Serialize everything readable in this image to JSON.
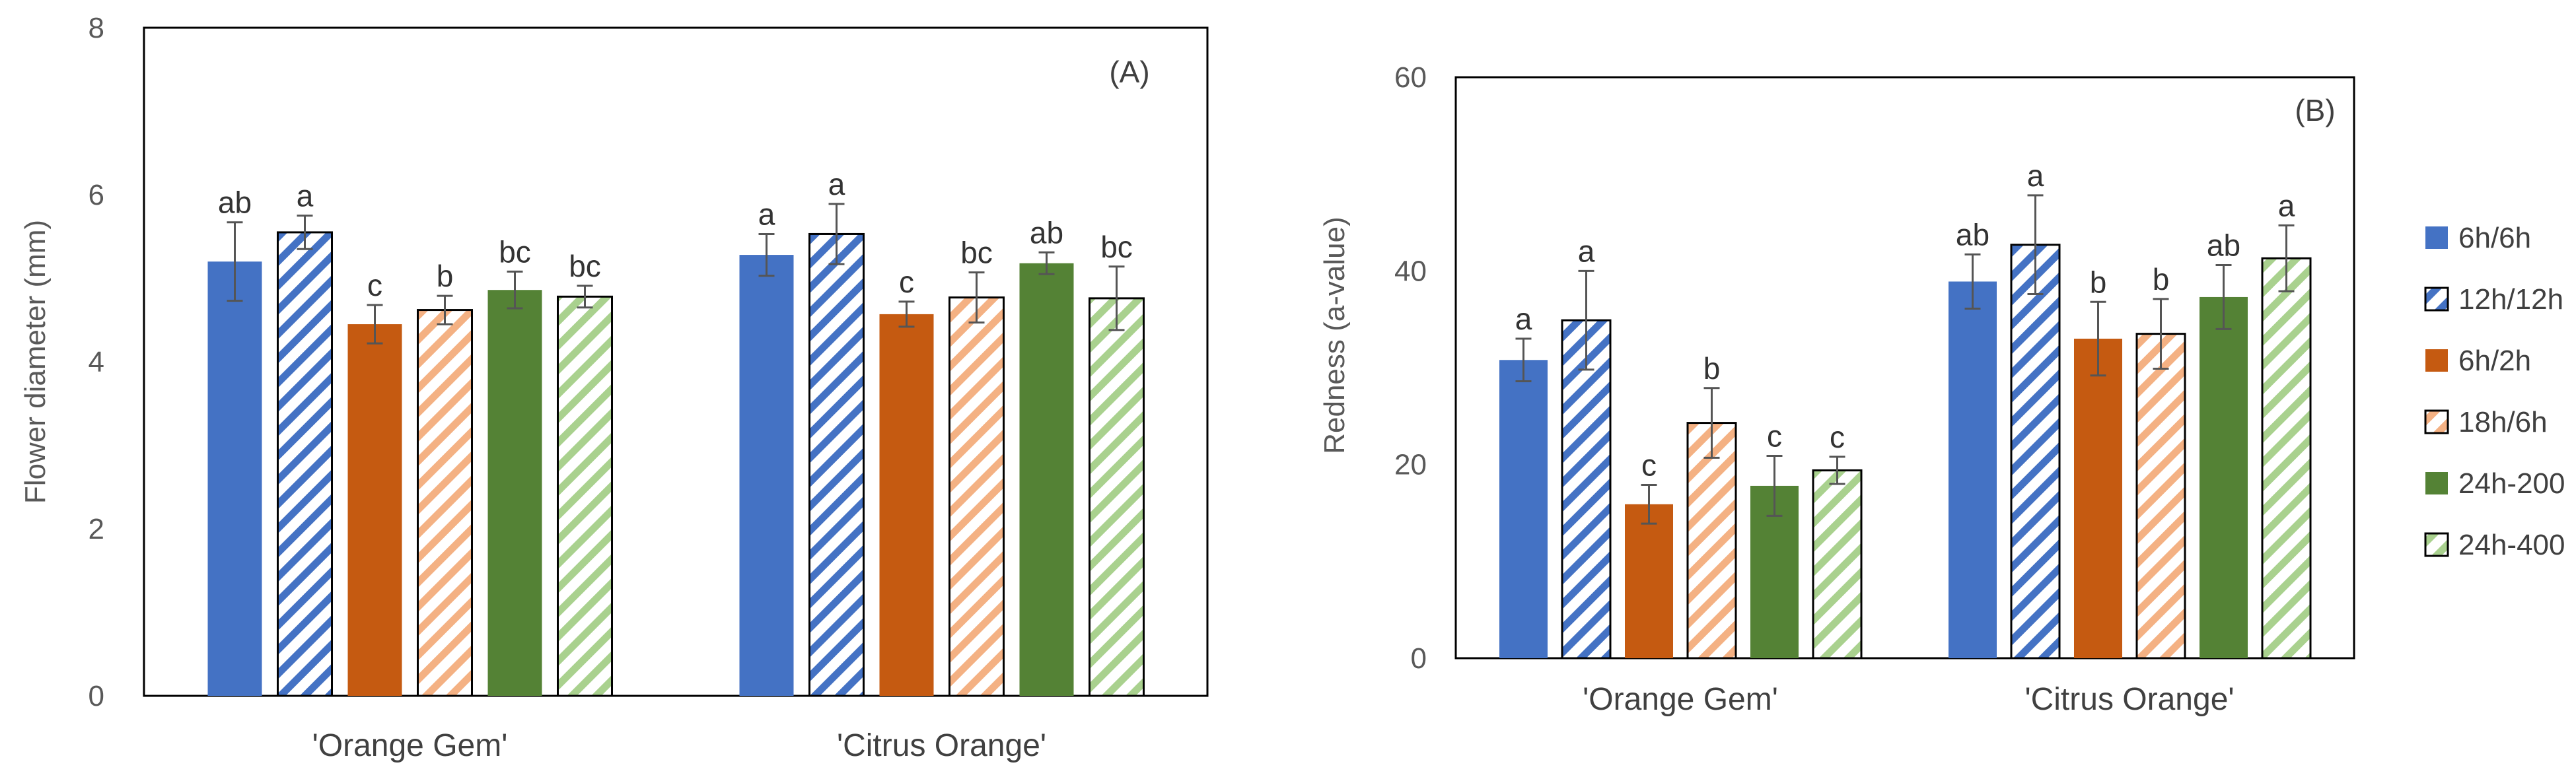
{
  "chart_data": [
    {
      "type": "bar",
      "panel_label": "(A)",
      "title": "",
      "xlabel": "",
      "ylabel": "Flower diameter (mm)",
      "ylim": [
        0,
        8
      ],
      "yticks": [
        "0",
        "2",
        "4",
        "6",
        "8"
      ],
      "grid": false,
      "categories": [
        "'Orange Gem'",
        "'Citrus Orange'"
      ],
      "series": [
        {
          "name": "6h/6h",
          "color": "#4472C4",
          "pattern": "solid",
          "values": [
            5.2,
            5.28
          ],
          "errors": [
            0.47,
            0.25
          ],
          "letters": [
            "ab",
            "a"
          ]
        },
        {
          "name": "12h/12h",
          "color": "#4472C4",
          "pattern": "stripe",
          "values": [
            5.55,
            5.53
          ],
          "errors": [
            0.2,
            0.36
          ],
          "letters": [
            "a",
            "a"
          ]
        },
        {
          "name": "6h/2h",
          "color": "#C55A11",
          "pattern": "solid",
          "values": [
            4.45,
            4.57
          ],
          "errors": [
            0.23,
            0.15
          ],
          "letters": [
            "c",
            "c"
          ]
        },
        {
          "name": "18h/6h",
          "color": "#F4B183",
          "pattern": "stripe",
          "values": [
            4.62,
            4.77
          ],
          "errors": [
            0.17,
            0.3
          ],
          "letters": [
            "b",
            "bc"
          ]
        },
        {
          "name": "24h-200",
          "color": "#548235",
          "pattern": "solid",
          "values": [
            4.86,
            5.18
          ],
          "errors": [
            0.22,
            0.13
          ],
          "letters": [
            "bc",
            "ab"
          ]
        },
        {
          "name": "24h-400",
          "color": "#A9D18E",
          "pattern": "stripe",
          "values": [
            4.78,
            4.76
          ],
          "errors": [
            0.13,
            0.38
          ],
          "letters": [
            "bc",
            "bc"
          ]
        }
      ]
    },
    {
      "type": "bar",
      "panel_label": "(B)",
      "title": "",
      "xlabel": "",
      "ylabel": "Redness (a-value)",
      "ylim": [
        0,
        60
      ],
      "yticks": [
        "0",
        "20",
        "40",
        "60"
      ],
      "grid": false,
      "legend": "right",
      "categories": [
        "'Orange Gem'",
        "'Citrus Orange'"
      ],
      "series": [
        {
          "name": "6h/6h",
          "color": "#4472C4",
          "pattern": "solid",
          "values": [
            30.8,
            38.9
          ],
          "errors": [
            2.2,
            2.8
          ],
          "letters": [
            "a",
            "ab"
          ]
        },
        {
          "name": "12h/12h",
          "color": "#4472C4",
          "pattern": "stripe",
          "values": [
            34.9,
            42.7
          ],
          "errors": [
            5.1,
            5.1
          ],
          "letters": [
            "a",
            "a"
          ]
        },
        {
          "name": "6h/2h",
          "color": "#C55A11",
          "pattern": "solid",
          "values": [
            15.9,
            33.0
          ],
          "errors": [
            2.0,
            3.8
          ],
          "letters": [
            "c",
            "b"
          ]
        },
        {
          "name": "18h/6h",
          "color": "#F4B183",
          "pattern": "stripe",
          "values": [
            24.3,
            33.5
          ],
          "errors": [
            3.6,
            3.6
          ],
          "letters": [
            "b",
            "b"
          ]
        },
        {
          "name": "24h-200",
          "color": "#548235",
          "pattern": "solid",
          "values": [
            17.8,
            37.3
          ],
          "errors": [
            3.1,
            3.3
          ],
          "letters": [
            "c",
            "ab"
          ]
        },
        {
          "name": "24h-400",
          "color": "#A9D18E",
          "pattern": "stripe",
          "values": [
            19.4,
            41.3
          ],
          "errors": [
            1.4,
            3.4
          ],
          "letters": [
            "c",
            "a"
          ]
        }
      ]
    }
  ]
}
